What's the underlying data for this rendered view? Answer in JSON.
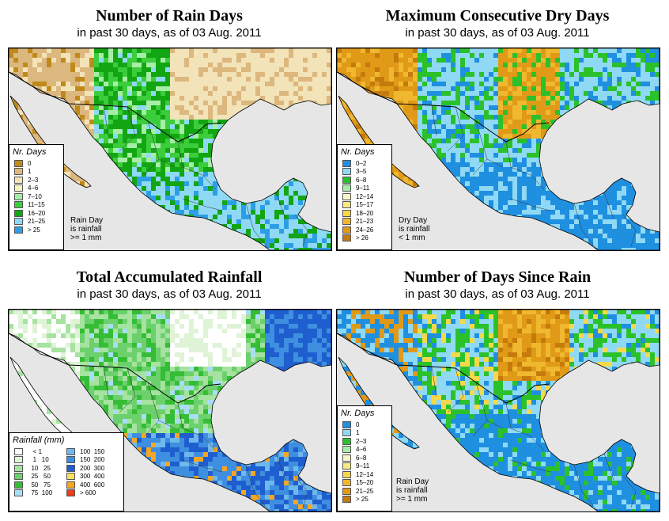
{
  "panels": [
    {
      "title": "Number of Rain Days",
      "subtitle": "in past 30 days, as of  03 Aug. 2011",
      "legend_title": "Nr. Days",
      "legend": [
        {
          "label": "0",
          "color": "#c08a1a"
        },
        {
          "label": "1",
          "color": "#dcb77e"
        },
        {
          "label": "2–3",
          "color": "#f3e3b8"
        },
        {
          "label": "4–6",
          "color": "#f8f5c0"
        },
        {
          "label": "7–10",
          "color": "#a6eea6"
        },
        {
          "label": "11–15",
          "color": "#3ccd3c"
        },
        {
          "label": "16–20",
          "color": "#12a612"
        },
        {
          "label": "21–25",
          "color": "#8fd9f5"
        },
        {
          "label": "> 25",
          "color": "#2d9ee6"
        }
      ],
      "note": [
        "Rain Day",
        "is rainfall",
        ">= 1 mm"
      ]
    },
    {
      "title": "Maximum Consecutive Dry Days",
      "subtitle": "in past 30 days, as of  03 Aug. 2011",
      "legend_title": "Nr. Days",
      "legend": [
        {
          "label": "0–2",
          "color": "#1f8fe0"
        },
        {
          "label": "3–5",
          "color": "#8fd9f5"
        },
        {
          "label": "6–8",
          "color": "#2bc12b"
        },
        {
          "label": "9–11",
          "color": "#a6eea6"
        },
        {
          "label": "12–14",
          "color": "#f8f7c8"
        },
        {
          "label": "15–17",
          "color": "#f7eb7d"
        },
        {
          "label": "18–20",
          "color": "#f5d94a"
        },
        {
          "label": "21–23",
          "color": "#f0b82e"
        },
        {
          "label": "24–26",
          "color": "#e09a18"
        },
        {
          "label": "> 26",
          "color": "#c47b0c"
        }
      ],
      "note": [
        "Dry Day",
        "is rainfall",
        "< 1 mm"
      ]
    },
    {
      "title": "Total Accumulated Rainfall",
      "subtitle": "in past 30 days, as of  03 Aug. 2011",
      "legend_title": "Rainfall (mm)",
      "legend": [
        {
          "label": "   < 1",
          "color": "#ffffff"
        },
        {
          "label": "   1   10",
          "color": "#dff3d6"
        },
        {
          "label": "  10   25",
          "color": "#a6e3a0"
        },
        {
          "label": "  25   50",
          "color": "#6cd06c"
        },
        {
          "label": "  50   75",
          "color": "#35bd35"
        },
        {
          "label": "  75  100",
          "color": "#a8ddf8"
        },
        {
          "label": "100  150",
          "color": "#6fb8ee"
        },
        {
          "label": "150  200",
          "color": "#3f8fe0"
        },
        {
          "label": "200  300",
          "color": "#1f5ecf"
        },
        {
          "label": "300  400",
          "color": "#f7e25a"
        },
        {
          "label": "400  600",
          "color": "#f5a623"
        },
        {
          "label": "> 600",
          "color": "#f03c14"
        }
      ],
      "note": []
    },
    {
      "title": "Number of Days Since Rain",
      "subtitle": "in past 30 days, as of  03 Aug. 2011",
      "legend_title": "Nr. Days",
      "legend": [
        {
          "label": "0",
          "color": "#1f8fe0"
        },
        {
          "label": "1",
          "color": "#8fd9f5"
        },
        {
          "label": "2–3",
          "color": "#2bc12b"
        },
        {
          "label": "4–6",
          "color": "#a6eea6"
        },
        {
          "label": "6–8",
          "color": "#f8f7c8"
        },
        {
          "label": "9–11",
          "color": "#f7eb7d"
        },
        {
          "label": "12–14",
          "color": "#f5d94a"
        },
        {
          "label": "15–20",
          "color": "#f0b82e"
        },
        {
          "label": "21–25",
          "color": "#e09a18"
        },
        {
          "label": "> 25",
          "color": "#c47b0c"
        }
      ],
      "note": [
        "Rain Day",
        "is rainfall",
        ">= 1 mm"
      ]
    }
  ],
  "map_colors": {
    "ocean": "#e6e6e6",
    "border": "#000000"
  }
}
